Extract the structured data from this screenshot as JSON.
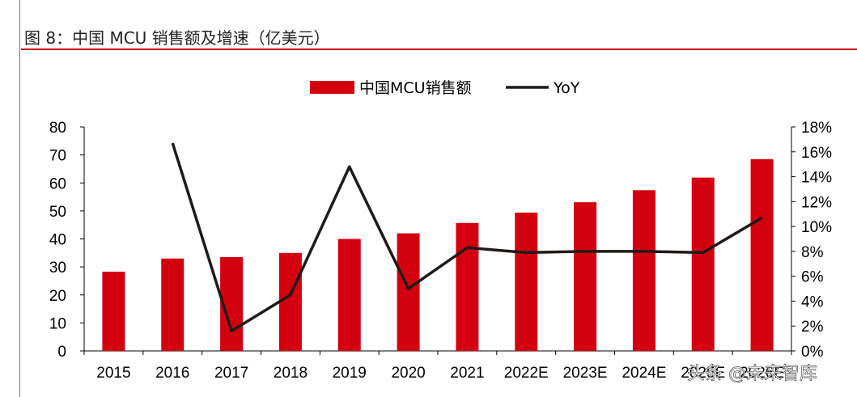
{
  "title": "图 8：中国 MCU 销售额及增速（亿美元）",
  "watermark": "头条 @未来智库",
  "colors": {
    "bar": "#d3000f",
    "line": "#1f1a17",
    "title_rule": "#c00000"
  },
  "chart_data": {
    "type": "bar+line",
    "categories": [
      "2015",
      "2016",
      "2017",
      "2018",
      "2019",
      "2020",
      "2021",
      "2022E",
      "2023E",
      "2024E",
      "2025E",
      "2026E"
    ],
    "series": [
      {
        "name": "中国MCU销售额",
        "type": "bar",
        "axis": "left",
        "values": [
          28.3,
          33.0,
          33.5,
          35.0,
          40.0,
          42.0,
          45.7,
          49.4,
          53.1,
          57.4,
          61.9,
          68.5
        ]
      },
      {
        "name": "YoY",
        "type": "line",
        "axis": "right",
        "values": [
          null,
          16.7,
          1.6,
          4.5,
          14.8,
          5.0,
          8.3,
          7.9,
          8.0,
          8.0,
          7.9,
          10.7
        ]
      }
    ],
    "left_axis": {
      "ylim": [
        0,
        80
      ],
      "ticks": [
        "0",
        "10",
        "20",
        "30",
        "40",
        "50",
        "60",
        "70",
        "80"
      ]
    },
    "right_axis": {
      "ylim": [
        0,
        18
      ],
      "ticks": [
        "0%",
        "2%",
        "4%",
        "6%",
        "8%",
        "10%",
        "12%",
        "14%",
        "16%",
        "18%"
      ]
    },
    "legend": {
      "position": "top-center"
    }
  }
}
